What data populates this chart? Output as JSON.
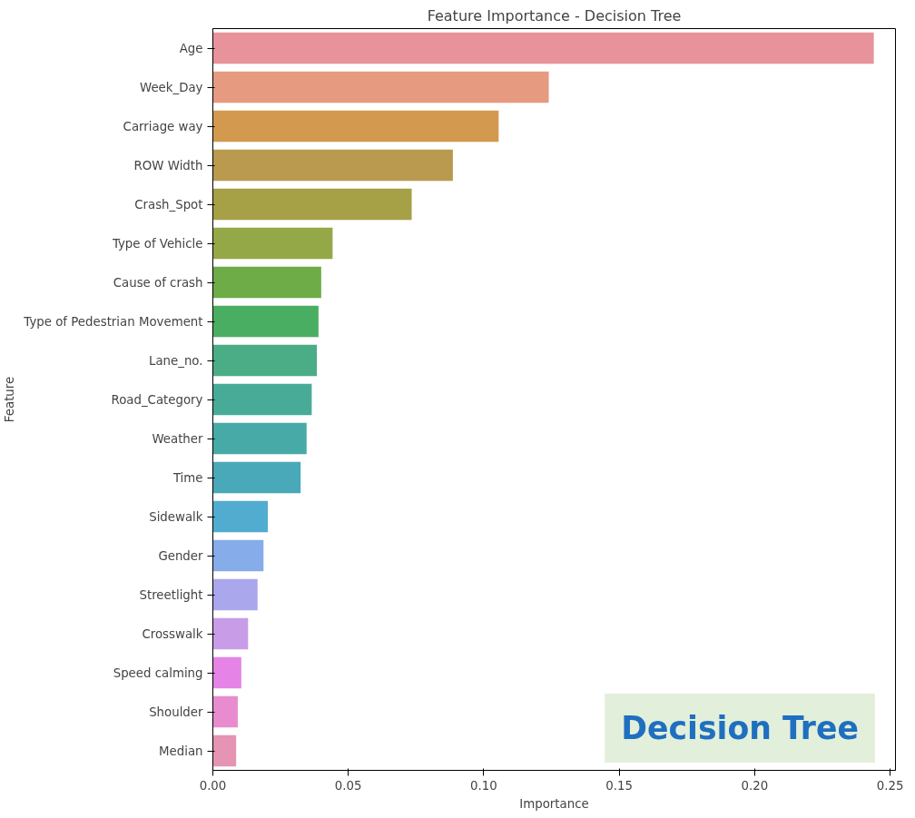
{
  "chart_data": {
    "type": "bar",
    "orientation": "horizontal",
    "title": "Feature Importance - Decision Tree",
    "xlabel": "Importance",
    "ylabel": "Feature",
    "categories": [
      "Age",
      "Week_Day",
      "Carriage way",
      "ROW Width",
      "Crash_Spot",
      "Type of Vehicle",
      "Cause of crash",
      "Type of Pedestrian Movement",
      "Lane_no.",
      "Road_Category",
      "Weather",
      "Time",
      "Sidewalk",
      "Gender",
      "Streetlight",
      "Crosswalk",
      "Speed calming",
      "Shoulder",
      "Median"
    ],
    "values": [
      0.244,
      0.124,
      0.1055,
      0.0886,
      0.0734,
      0.0442,
      0.04,
      0.039,
      0.0384,
      0.0365,
      0.0346,
      0.0324,
      0.0203,
      0.0187,
      0.0165,
      0.013,
      0.0105,
      0.0092,
      0.0086
    ],
    "colors": [
      "#e8939b",
      "#e69a80",
      "#d39a4f",
      "#b99a4e",
      "#a6a046",
      "#94a848",
      "#6dac47",
      "#4aae62",
      "#4aad86",
      "#48ab98",
      "#47aaa6",
      "#4aa9b8",
      "#51acd0",
      "#86acea",
      "#aba7ec",
      "#c89ce6",
      "#e584e6",
      "#e88ccf",
      "#e694b3"
    ],
    "xlim": [
      0,
      0.252
    ],
    "xticks": [
      {
        "value": 0,
        "label": "0.00"
      },
      0.05,
      {
        "value": 0.1,
        "label": "0.10"
      },
      0.15,
      {
        "value": 0.2,
        "label": "0.20"
      },
      0.25
    ],
    "grid": false,
    "annotations": [
      "Decision Tree"
    ]
  }
}
